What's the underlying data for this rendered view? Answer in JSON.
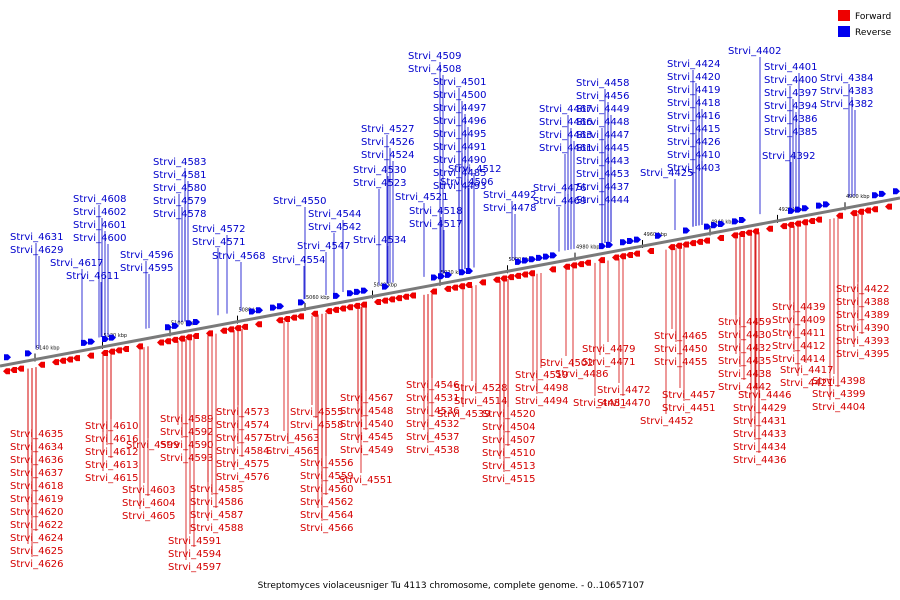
{
  "caption": "Streptomyces violaceusniger Tu 4113 chromosome, complete genome. - 0..10657107",
  "legend": [
    {
      "label": "Forward",
      "color": "#ee0000"
    },
    {
      "label": "Reverse",
      "color": "#0000ee"
    }
  ],
  "scale_labels": [
    "5140 kbp",
    "5120 kbp",
    "5100 kbp",
    "5080 kbp",
    "5060 kbp",
    "5040 kbp",
    "5020 kbp",
    "5000 kbp",
    "4980 kbp",
    "4960 kbp",
    "4940 kbp",
    "4920 kbp",
    "4900 kbp"
  ],
  "forward_genes": [
    "Strvi_4635",
    "Strvi_4634",
    "Strvi_4636",
    "Strvi_4637",
    "Strvi_4618",
    "Strvi_4619",
    "Strvi_4620",
    "Strvi_4622",
    "Strvi_4624",
    "Strvi_4625",
    "Strvi_4626",
    "Strvi_4610",
    "Strvi_4616",
    "Strvi_4612",
    "Strvi_4613",
    "Strvi_4615",
    "Strvi_4603",
    "Strvi_4604",
    "Strvi_4605",
    "Strvi_4599",
    "Strvi_4589",
    "Strvi_4592",
    "Strvi_4590",
    "Strvi_4593",
    "Strvi_4585",
    "Strvi_4586",
    "Strvi_4587",
    "Strvi_4588",
    "Strvi_4591",
    "Strvi_4594",
    "Strvi_4597",
    "Strvi_4573",
    "Strvi_4574",
    "Strvi_4577",
    "Strvi_4584",
    "Strvi_4575",
    "Strvi_4576",
    "Strvi_4555",
    "Strvi_4558",
    "Strvi_4563",
    "Strvi_4565",
    "Strvi_4556",
    "Strvi_4559",
    "Strvi_4560",
    "Strvi_4562",
    "Strvi_4564",
    "Strvi_4566",
    "Strvi_4567",
    "Strvi_4548",
    "Strvi_4540",
    "Strvi_4545",
    "Strvi_4549",
    "Strvi_4551",
    "Strvi_4546",
    "Strvi_4531",
    "Strvi_4536",
    "Strvi_4532",
    "Strvi_4537",
    "Strvi_4538",
    "Strvi_4539",
    "Strvi_4528",
    "Strvi_4514",
    "Strvi_4520",
    "Strvi_4504",
    "Strvi_4507",
    "Strvi_4510",
    "Strvi_4513",
    "Strvi_4515",
    "Strvi_4519",
    "Strvi_4498",
    "Strvi_4494",
    "Strvi_4502",
    "Strvi_4486",
    "Strvi_4481",
    "Strvi_4479",
    "Strvi_4471",
    "Strvi_4472",
    "Strvi_4470",
    "Strvi_4465",
    "Strvi_4450",
    "Strvi_4455",
    "Strvi_4457",
    "Strvi_4451",
    "Strvi_4452",
    "Strvi_4459",
    "Strvi_4430",
    "Strvi_4432",
    "Strvi_4435",
    "Strvi_4438",
    "Strvi_4442",
    "Strvi_4446",
    "Strvi_4429",
    "Strvi_4431",
    "Strvi_4433",
    "Strvi_4434",
    "Strvi_4436",
    "Strvi_4439",
    "Strvi_4409",
    "Strvi_4411",
    "Strvi_4412",
    "Strvi_4414",
    "Strvi_4417",
    "Strvi_4421",
    "Strvi_4422",
    "Strvi_4388",
    "Strvi_4389",
    "Strvi_4390",
    "Strvi_4393",
    "Strvi_4395",
    "Strvi_4398",
    "Strvi_4399",
    "Strvi_4404",
    "Strvi_4405",
    "Strvi_4406"
  ],
  "reverse_genes": [
    "Strvi_4631",
    "Strvi_4629",
    "Strvi_4617",
    "Strvi_4611",
    "Strvi_4608",
    "Strvi_4602",
    "Strvi_4601",
    "Strvi_4600",
    "Strvi_4596",
    "Strvi_4595",
    "Strvi_4583",
    "Strvi_4581",
    "Strvi_4580",
    "Strvi_4579",
    "Strvi_4578",
    "Strvi_4572",
    "Strvi_4571",
    "Strvi_4568",
    "Strvi_4550",
    "Strvi_4544",
    "Strvi_4542",
    "Strvi_4547",
    "Strvi_4554",
    "Strvi_4534",
    "Strvi_4527",
    "Strvi_4526",
    "Strvi_4524",
    "Strvi_4530",
    "Strvi_4523",
    "Strvi_4521",
    "Strvi_4518",
    "Strvi_4517",
    "Strvi_4512",
    "Strvi_4506",
    "Strvi_4509",
    "Strvi_4508",
    "Strvi_4501",
    "Strvi_4500",
    "Strvi_4497",
    "Strvi_4496",
    "Strvi_4495",
    "Strvi_4491",
    "Strvi_4490",
    "Strvi_4485",
    "Strvi_4493",
    "Strvi_4492",
    "Strvi_4478",
    "Strvi_4476",
    "Strvi_4469",
    "Strvi_4467",
    "Strvi_4466",
    "Strvi_4463",
    "Strvi_4461",
    "Strvi_4458",
    "Strvi_4456",
    "Strvi_4449",
    "Strvi_4448",
    "Strvi_4447",
    "Strvi_4445",
    "Strvi_4443",
    "Strvi_4453",
    "Strvi_4437",
    "Strvi_4444",
    "Strvi_4425",
    "Strvi_4424",
    "Strvi_4420",
    "Strvi_4419",
    "Strvi_4418",
    "Strvi_4416",
    "Strvi_4415",
    "Strvi_4426",
    "Strvi_4410",
    "Strvi_4403",
    "Strvi_4392",
    "Strvi_4402",
    "Strvi_4401",
    "Strvi_4400",
    "Strvi_4397",
    "Strvi_4394",
    "Strvi_4386",
    "Strvi_4385",
    "Strvi_4384",
    "Strvi_4383",
    "Strvi_4382"
  ]
}
